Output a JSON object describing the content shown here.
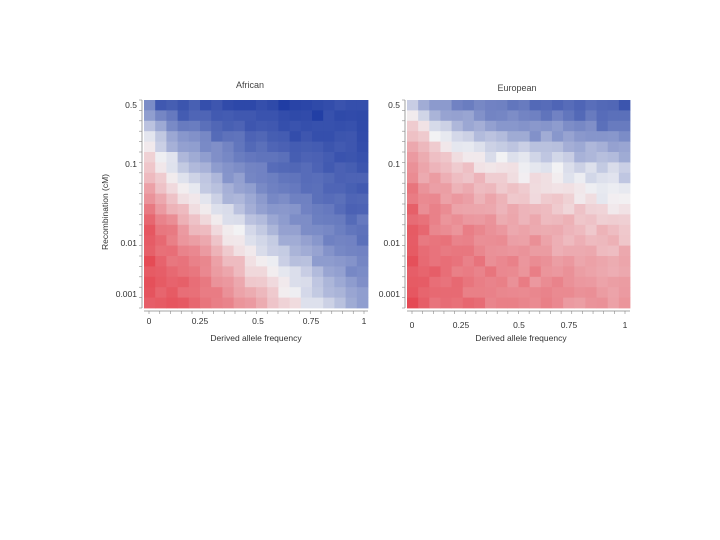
{
  "chart_data": [
    {
      "type": "heatmap",
      "title": "African",
      "xlabel": "Derived allele frequency",
      "ylabel": "Recombination (cM)",
      "x_ticks": [
        "0",
        "0.25",
        "0.5",
        "0.75",
        "1"
      ],
      "y_ticks": [
        "0.5",
        "0.1",
        "0.01",
        "0.001"
      ],
      "xlim": [
        0,
        1
      ],
      "y_scale": "log",
      "grid": "off",
      "colors": {
        "low": "#e4424d",
        "mid": "#f2f2f4",
        "high": "#1e3ba3"
      },
      "rows": 20,
      "cols": 20,
      "values": [
        [
          0.56,
          0.84,
          0.81,
          0.86,
          0.8,
          0.89,
          0.85,
          0.91,
          0.93,
          0.93,
          0.89,
          0.92,
          0.99,
          0.95,
          0.94,
          0.92,
          0.9,
          0.87,
          0.89,
          0.89
        ],
        [
          0.46,
          0.59,
          0.66,
          0.82,
          0.77,
          0.77,
          0.83,
          0.82,
          0.84,
          0.84,
          0.87,
          0.87,
          0.9,
          0.92,
          0.91,
          0.98,
          0.88,
          0.92,
          0.91,
          0.92
        ],
        [
          0.26,
          0.4,
          0.57,
          0.65,
          0.64,
          0.71,
          0.76,
          0.8,
          0.78,
          0.85,
          0.83,
          0.84,
          0.89,
          0.87,
          0.89,
          0.88,
          0.88,
          0.89,
          0.88,
          0.92
        ],
        [
          0.07,
          0.23,
          0.41,
          0.5,
          0.53,
          0.58,
          0.74,
          0.7,
          0.69,
          0.78,
          0.76,
          0.81,
          0.82,
          0.9,
          0.85,
          0.89,
          0.89,
          0.86,
          0.85,
          0.91
        ],
        [
          -0.05,
          0.19,
          0.36,
          0.45,
          0.46,
          0.57,
          0.54,
          0.6,
          0.68,
          0.75,
          0.71,
          0.77,
          0.79,
          0.82,
          0.81,
          0.82,
          0.86,
          0.83,
          0.85,
          0.9
        ],
        [
          -0.19,
          0.02,
          0.08,
          0.32,
          0.39,
          0.46,
          0.54,
          0.58,
          0.64,
          0.67,
          0.69,
          0.69,
          0.71,
          0.81,
          0.78,
          0.79,
          0.82,
          0.87,
          0.86,
          0.88
        ],
        [
          -0.25,
          -0.06,
          0.09,
          0.22,
          0.31,
          0.35,
          0.47,
          0.52,
          0.55,
          0.6,
          0.61,
          0.73,
          0.75,
          0.76,
          0.73,
          0.78,
          0.83,
          0.79,
          0.81,
          0.86
        ],
        [
          -0.32,
          -0.22,
          -0.04,
          0.09,
          0.17,
          0.24,
          0.32,
          0.51,
          0.45,
          0.59,
          0.61,
          0.63,
          0.68,
          0.69,
          0.73,
          0.72,
          0.75,
          0.79,
          0.78,
          0.78
        ],
        [
          -0.46,
          -0.27,
          -0.14,
          -0.03,
          0.05,
          0.22,
          0.27,
          0.36,
          0.43,
          0.46,
          0.57,
          0.62,
          0.64,
          0.66,
          0.72,
          0.71,
          0.77,
          0.77,
          0.8,
          0.83
        ],
        [
          -0.54,
          -0.42,
          -0.27,
          -0.11,
          -0.06,
          0.07,
          0.18,
          0.34,
          0.32,
          0.4,
          0.48,
          0.58,
          0.55,
          0.62,
          0.62,
          0.71,
          0.73,
          0.71,
          0.77,
          0.76
        ],
        [
          -0.68,
          -0.5,
          -0.36,
          -0.31,
          -0.12,
          -0.04,
          0.1,
          0.12,
          0.26,
          0.37,
          0.45,
          0.5,
          0.49,
          0.51,
          0.61,
          0.64,
          0.66,
          0.73,
          0.79,
          0.78
        ],
        [
          -0.79,
          -0.63,
          -0.57,
          -0.37,
          -0.27,
          -0.15,
          -0.04,
          0.11,
          0.12,
          0.26,
          0.3,
          0.41,
          0.47,
          0.55,
          0.55,
          0.63,
          0.64,
          0.65,
          0.74,
          0.66
        ],
        [
          -0.88,
          -0.7,
          -0.68,
          -0.5,
          -0.33,
          -0.31,
          -0.14,
          -0.04,
          0.0,
          0.14,
          0.22,
          0.33,
          0.44,
          0.44,
          0.55,
          0.56,
          0.58,
          0.63,
          0.68,
          0.7
        ],
        [
          -0.85,
          -0.78,
          -0.65,
          -0.52,
          -0.48,
          -0.42,
          -0.26,
          -0.07,
          -0.06,
          0.1,
          0.15,
          0.21,
          0.38,
          0.38,
          0.44,
          0.5,
          0.62,
          0.6,
          0.61,
          0.71
        ],
        [
          -0.83,
          -0.74,
          -0.75,
          -0.63,
          -0.6,
          -0.5,
          -0.36,
          -0.23,
          -0.1,
          -0.05,
          0.12,
          0.19,
          0.21,
          0.34,
          0.38,
          0.43,
          0.52,
          0.58,
          0.6,
          0.61
        ],
        [
          -0.95,
          -0.81,
          -0.7,
          -0.72,
          -0.64,
          -0.61,
          -0.46,
          -0.31,
          -0.31,
          -0.1,
          -0.03,
          0.03,
          0.19,
          0.28,
          0.27,
          0.47,
          0.47,
          0.49,
          0.52,
          0.59
        ],
        [
          -0.86,
          -0.84,
          -0.78,
          -0.73,
          -0.7,
          -0.6,
          -0.49,
          -0.43,
          -0.32,
          -0.15,
          -0.15,
          -0.03,
          0.06,
          0.11,
          0.2,
          0.3,
          0.42,
          0.45,
          0.58,
          0.56
        ],
        [
          -0.92,
          -0.86,
          -0.81,
          -0.83,
          -0.75,
          -0.69,
          -0.54,
          -0.51,
          -0.42,
          -0.24,
          -0.23,
          -0.14,
          -0.05,
          0.11,
          0.12,
          0.24,
          0.33,
          0.4,
          0.47,
          0.54
        ],
        [
          -0.9,
          -0.8,
          -0.86,
          -0.75,
          -0.74,
          -0.67,
          -0.67,
          -0.55,
          -0.45,
          -0.4,
          -0.33,
          -0.23,
          -0.03,
          0.02,
          0.14,
          0.22,
          0.31,
          0.34,
          0.42,
          0.46
        ],
        [
          -0.84,
          -0.86,
          -0.89,
          -0.87,
          -0.79,
          -0.71,
          -0.66,
          -0.63,
          -0.53,
          -0.5,
          -0.4,
          -0.26,
          -0.18,
          -0.13,
          0.1,
          0.1,
          0.18,
          0.27,
          0.39,
          0.46
        ]
      ]
    },
    {
      "type": "heatmap",
      "title": "European",
      "xlabel": "Derived allele frequency",
      "ylabel": "",
      "x_ticks": [
        "0",
        "0.25",
        "0.5",
        "0.75",
        "1"
      ],
      "y_ticks": [
        "0.5",
        "0.1",
        "0.01",
        "0.001"
      ],
      "xlim": [
        0,
        1
      ],
      "y_scale": "log",
      "grid": "off",
      "colors": {
        "low": "#e4424d",
        "mid": "#f2f2f4",
        "high": "#1e3ba3"
      },
      "rows": 20,
      "cols": 20,
      "values": [
        [
          0.2,
          0.38,
          0.48,
          0.48,
          0.61,
          0.64,
          0.58,
          0.61,
          0.62,
          0.68,
          0.65,
          0.75,
          0.73,
          0.77,
          0.73,
          0.77,
          0.72,
          0.75,
          0.76,
          0.86
        ],
        [
          -0.04,
          0.16,
          0.34,
          0.43,
          0.44,
          0.42,
          0.53,
          0.6,
          0.59,
          0.55,
          0.6,
          0.62,
          0.69,
          0.61,
          0.68,
          0.75,
          0.65,
          0.73,
          0.71,
          0.71
        ],
        [
          -0.22,
          -0.09,
          0.13,
          0.18,
          0.32,
          0.41,
          0.37,
          0.45,
          0.5,
          0.5,
          0.52,
          0.49,
          0.51,
          0.47,
          0.55,
          0.58,
          0.54,
          0.71,
          0.65,
          0.65
        ],
        [
          -0.28,
          -0.23,
          0.0,
          0.05,
          0.14,
          0.18,
          0.3,
          0.26,
          0.3,
          0.39,
          0.39,
          0.53,
          0.38,
          0.5,
          0.43,
          0.49,
          0.51,
          0.51,
          0.5,
          0.56
        ],
        [
          -0.42,
          -0.33,
          -0.22,
          -0.06,
          0.06,
          0.05,
          0.1,
          0.18,
          0.21,
          0.25,
          0.19,
          0.27,
          0.27,
          0.28,
          0.37,
          0.4,
          0.32,
          0.36,
          0.44,
          0.42
        ],
        [
          -0.5,
          -0.4,
          -0.29,
          -0.25,
          -0.12,
          -0.05,
          -0.05,
          0.12,
          0.0,
          0.1,
          0.06,
          0.16,
          0.24,
          0.15,
          0.2,
          0.35,
          0.32,
          0.28,
          0.3,
          0.39
        ],
        [
          -0.55,
          -0.44,
          -0.35,
          -0.3,
          -0.22,
          -0.29,
          -0.09,
          -0.07,
          -0.09,
          -0.1,
          0.02,
          0.06,
          0.09,
          0.0,
          0.11,
          0.18,
          0.1,
          0.22,
          0.12,
          0.19
        ],
        [
          -0.58,
          -0.41,
          -0.49,
          -0.38,
          -0.3,
          -0.26,
          -0.35,
          -0.21,
          -0.21,
          -0.12,
          -0.02,
          -0.14,
          -0.11,
          -0.03,
          0.09,
          0.03,
          0.15,
          0.1,
          0.08,
          0.24
        ],
        [
          -0.71,
          -0.54,
          -0.47,
          -0.48,
          -0.36,
          -0.41,
          -0.31,
          -0.33,
          -0.23,
          -0.28,
          -0.22,
          -0.13,
          -0.11,
          -0.09,
          -0.1,
          -0.06,
          0.02,
          0.05,
          0.03,
          0.05
        ],
        [
          -0.67,
          -0.59,
          -0.6,
          -0.46,
          -0.51,
          -0.47,
          -0.36,
          -0.44,
          -0.36,
          -0.24,
          -0.25,
          -0.14,
          -0.23,
          -0.25,
          -0.19,
          -0.05,
          -0.12,
          0.06,
          -0.02,
          -0.01
        ],
        [
          -0.83,
          -0.57,
          -0.64,
          -0.58,
          -0.45,
          -0.44,
          -0.43,
          -0.42,
          -0.35,
          -0.42,
          -0.35,
          -0.33,
          -0.31,
          -0.23,
          -0.16,
          -0.27,
          -0.18,
          -0.17,
          -0.05,
          -0.09
        ],
        [
          -0.76,
          -0.73,
          -0.64,
          -0.53,
          -0.57,
          -0.51,
          -0.5,
          -0.54,
          -0.4,
          -0.43,
          -0.35,
          -0.42,
          -0.32,
          -0.33,
          -0.37,
          -0.25,
          -0.27,
          -0.2,
          -0.21,
          -0.2
        ],
        [
          -0.86,
          -0.79,
          -0.61,
          -0.58,
          -0.53,
          -0.66,
          -0.61,
          -0.55,
          -0.51,
          -0.42,
          -0.45,
          -0.41,
          -0.4,
          -0.41,
          -0.35,
          -0.32,
          -0.24,
          -0.36,
          -0.3,
          -0.24
        ],
        [
          -0.85,
          -0.69,
          -0.71,
          -0.73,
          -0.63,
          -0.64,
          -0.56,
          -0.57,
          -0.58,
          -0.47,
          -0.46,
          -0.56,
          -0.45,
          -0.38,
          -0.32,
          -0.38,
          -0.32,
          -0.33,
          -0.37,
          -0.25
        ],
        [
          -0.86,
          -0.76,
          -0.72,
          -0.68,
          -0.7,
          -0.7,
          -0.61,
          -0.55,
          -0.54,
          -0.52,
          -0.54,
          -0.49,
          -0.49,
          -0.38,
          -0.41,
          -0.41,
          -0.42,
          -0.32,
          -0.3,
          -0.42
        ],
        [
          -0.92,
          -0.77,
          -0.72,
          -0.75,
          -0.72,
          -0.64,
          -0.72,
          -0.56,
          -0.6,
          -0.64,
          -0.52,
          -0.58,
          -0.55,
          -0.48,
          -0.51,
          -0.43,
          -0.46,
          -0.43,
          -0.4,
          -0.44
        ],
        [
          -0.84,
          -0.8,
          -0.84,
          -0.75,
          -0.65,
          -0.67,
          -0.63,
          -0.71,
          -0.6,
          -0.59,
          -0.53,
          -0.66,
          -0.53,
          -0.51,
          -0.55,
          -0.48,
          -0.45,
          -0.42,
          -0.39,
          -0.42
        ],
        [
          -0.86,
          -0.85,
          -0.75,
          -0.72,
          -0.78,
          -0.71,
          -0.66,
          -0.63,
          -0.65,
          -0.55,
          -0.67,
          -0.51,
          -0.58,
          -0.63,
          -0.55,
          -0.51,
          -0.5,
          -0.45,
          -0.48,
          -0.49
        ],
        [
          -0.88,
          -0.8,
          -0.78,
          -0.77,
          -0.77,
          -0.65,
          -0.65,
          -0.64,
          -0.61,
          -0.6,
          -0.59,
          -0.61,
          -0.63,
          -0.59,
          -0.59,
          -0.55,
          -0.56,
          -0.49,
          -0.45,
          -0.5
        ],
        [
          -0.96,
          -0.84,
          -0.72,
          -0.76,
          -0.74,
          -0.79,
          -0.76,
          -0.62,
          -0.65,
          -0.65,
          -0.62,
          -0.59,
          -0.65,
          -0.6,
          -0.5,
          -0.48,
          -0.54,
          -0.55,
          -0.46,
          -0.53
        ]
      ]
    }
  ]
}
